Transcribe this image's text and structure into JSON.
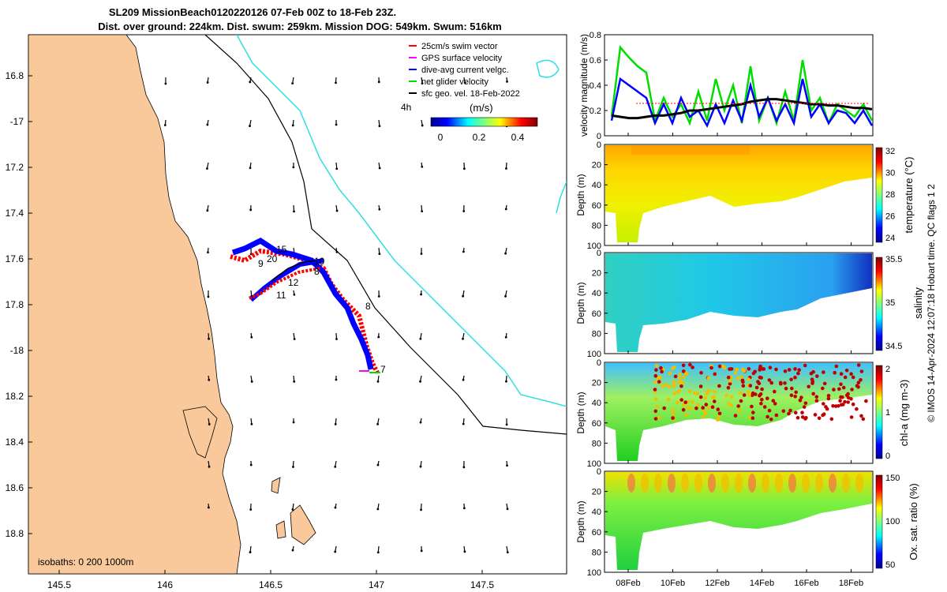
{
  "title_line1": "SL209 MissionBeach0120220126 07-Feb 00Z to 18-Feb 23Z.",
  "title_line2": "Dist. over ground: 224km. Dist. swum: 259km. Mission DOG: 549km. Swum: 516km",
  "colors": {
    "land": "#f9c99b",
    "isobath_200": "#000000",
    "isobath_1000": "#2de0e0",
    "track_blue": "#0000ff",
    "track_red": "#ff0000",
    "track_green": "#00dd00",
    "track_black": "#000000"
  },
  "map": {
    "lon_ticks": [
      "145.5",
      "146",
      "146.5",
      "147",
      "147.5"
    ],
    "lat_ticks": [
      "16.8",
      "-17",
      "17.2",
      "17.4",
      "17.6",
      "17.8",
      "-18",
      "18.2",
      "18.4",
      "18.6",
      "18.8"
    ],
    "isobaths_label": "isobaths: 0   200  1000m",
    "time_label": "4h",
    "day_labels": [
      "15",
      "20",
      "9",
      "8",
      "10",
      "12",
      "11",
      "8",
      "7"
    ],
    "legend": [
      {
        "label": "25cm/s swim vector",
        "color": "#ff0000"
      },
      {
        "label": "GPS surface velocity",
        "color": "#ff00ff"
      },
      {
        "label": "dive-avg current velgc.",
        "color": "#0000ff"
      },
      {
        "label": "net glider velocity",
        "color": "#00dd00"
      },
      {
        "label": "sfc geo. vel. 18-Feb-2022",
        "color": "#000000"
      }
    ],
    "colorbar": {
      "label": "(m/s)",
      "ticks": [
        "0",
        "0.2",
        "0.4"
      ]
    }
  },
  "chart_data": [
    {
      "type": "line",
      "title": "velocity magnitude",
      "ylabel": "velocity magnitude (m/s)",
      "ylim": [
        0,
        0.8
      ],
      "yticks": [
        "0",
        "0.2",
        "0.4",
        "0.6",
        "0.8"
      ],
      "series": [
        {
          "name": "net glider velocity",
          "color": "#00dd00",
          "values": [
            0.15,
            0.7,
            0.62,
            0.55,
            0.5,
            0.12,
            0.3,
            0.15,
            0.25,
            0.1,
            0.35,
            0.12,
            0.45,
            0.2,
            0.4,
            0.1,
            0.55,
            0.12,
            0.3,
            0.1,
            0.35,
            0.12,
            0.6,
            0.2,
            0.3,
            0.1,
            0.25,
            0.2,
            0.15,
            0.25,
            0.12
          ]
        },
        {
          "name": "dive-avg current velgc.",
          "color": "#0000ff",
          "values": [
            0.12,
            0.45,
            0.4,
            0.35,
            0.3,
            0.1,
            0.25,
            0.1,
            0.3,
            0.15,
            0.2,
            0.08,
            0.25,
            0.1,
            0.28,
            0.12,
            0.4,
            0.15,
            0.3,
            0.12,
            0.25,
            0.1,
            0.45,
            0.15,
            0.25,
            0.1,
            0.2,
            0.18,
            0.1,
            0.2,
            0.08
          ]
        },
        {
          "name": "sfc geo. vel.",
          "color": "#000000",
          "values": [
            0.16,
            0.15,
            0.14,
            0.14,
            0.15,
            0.16,
            0.16,
            0.17,
            0.18,
            0.2,
            0.2,
            0.21,
            0.22,
            0.23,
            0.24,
            0.25,
            0.27,
            0.28,
            0.29,
            0.29,
            0.28,
            0.27,
            0.26,
            0.25,
            0.25,
            0.24,
            0.24,
            0.23,
            0.22,
            0.22,
            0.21
          ]
        }
      ]
    },
    {
      "type": "heatmap",
      "title": "temperature",
      "ylabel": "Depth (m)",
      "colorbar_label": "temperature (°C)",
      "colorbar_ticks": [
        "32",
        "30",
        "28",
        "26",
        "24"
      ],
      "ylim": [
        0,
        100
      ],
      "yticks": [
        "0",
        "20",
        "40",
        "60",
        "80",
        "100"
      ]
    },
    {
      "type": "heatmap",
      "title": "salinity",
      "ylabel": "Depth (m)",
      "colorbar_label": "salinity",
      "colorbar_ticks": [
        "35.5",
        "35",
        "34.5"
      ],
      "ylim": [
        0,
        100
      ],
      "yticks": [
        "0",
        "20",
        "40",
        "60",
        "80",
        "100"
      ]
    },
    {
      "type": "heatmap",
      "title": "chl-a",
      "ylabel": "Depth (m)",
      "colorbar_label": "chl-a (mg m-3)",
      "colorbar_ticks": [
        "2",
        "1",
        "0"
      ],
      "ylim": [
        0,
        100
      ],
      "yticks": [
        "0",
        "20",
        "40",
        "60",
        "80",
        "100"
      ]
    },
    {
      "type": "heatmap",
      "title": "oxygen",
      "ylabel": "Depth (m)",
      "colorbar_label": "Ox. sat. ratio (%)",
      "colorbar_ticks": [
        "150",
        "100",
        "50"
      ],
      "ylim": [
        0,
        100
      ],
      "yticks": [
        "0",
        "20",
        "40",
        "60",
        "80",
        "100"
      ]
    }
  ],
  "xticks": [
    "08Feb",
    "10Feb",
    "12Feb",
    "14Feb",
    "16Feb",
    "18Feb"
  ],
  "footer_note": "© IMOS 14-Apr-2024 12:07:18 Hobart time. QC flags 1  2"
}
